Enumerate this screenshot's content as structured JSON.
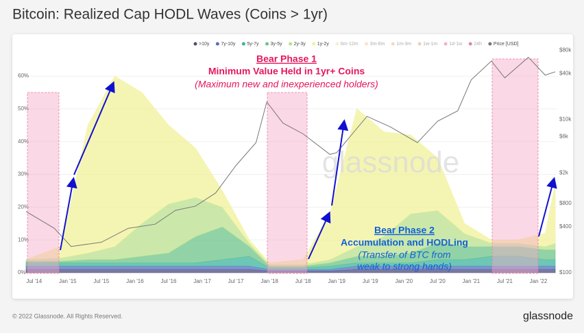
{
  "chart_data": {
    "type": "stacked-area",
    "title": "Bitcoin: Realized Cap HODL Waves (Coins > 1yr)",
    "watermark": "glassnode",
    "footer": "© 2022 Glassnode. All Rights Reserved.",
    "brand": "glassnode",
    "annotations": {
      "phase1_title": "Bear Phase 1",
      "phase1_line1": "Minimum Value Held in 1yr+ Coins",
      "phase1_line2": "(Maximum new and inexperienced holders)",
      "phase2_title": "Bear Phase 2",
      "phase2_line1": "Accumulation and HODLing",
      "phase2_line2": "(Transfer of BTC from",
      "phase2_line3": "weak to strong hands)"
    },
    "x": [
      2014.38,
      2014.9,
      2015.3,
      2015.7,
      2016.1,
      2016.5,
      2016.9,
      2017.3,
      2017.7,
      2018.0,
      2018.5,
      2018.9,
      2019.3,
      2019.7,
      2020.1,
      2020.5,
      2020.9,
      2021.3,
      2021.7,
      2022.1,
      2022.25
    ],
    "xlim": [
      2014.38,
      2022.27
    ],
    "xticks": [
      {
        "value": 2014.5,
        "label": "Jul '14"
      },
      {
        "value": 2015.0,
        "label": "Jan '15"
      },
      {
        "value": 2015.5,
        "label": "Jul '15"
      },
      {
        "value": 2016.0,
        "label": "Jan '16"
      },
      {
        "value": 2016.5,
        "label": "Jul '16"
      },
      {
        "value": 2017.0,
        "label": "Jan '17"
      },
      {
        "value": 2017.5,
        "label": "Jul '17"
      },
      {
        "value": 2018.0,
        "label": "Jan '18"
      },
      {
        "value": 2018.5,
        "label": "Jul '18"
      },
      {
        "value": 2019.0,
        "label": "Jan '19"
      },
      {
        "value": 2019.5,
        "label": "Jul '19"
      },
      {
        "value": 2020.0,
        "label": "Jan '20"
      },
      {
        "value": 2020.5,
        "label": "Jul '20"
      },
      {
        "value": 2021.0,
        "label": "Jan '21"
      },
      {
        "value": 2021.5,
        "label": "Jul '21"
      },
      {
        "value": 2022.0,
        "label": "Jan '22"
      }
    ],
    "ylim": [
      0,
      68.6
    ],
    "yticks": [
      {
        "value": 0,
        "label": "0%"
      },
      {
        "value": 10,
        "label": "10%"
      },
      {
        "value": 20,
        "label": "20%"
      },
      {
        "value": 30,
        "label": "30%"
      },
      {
        "value": 40,
        "label": "40%"
      },
      {
        "value": 50,
        "label": "50%"
      },
      {
        "value": 60,
        "label": "60%"
      }
    ],
    "y2lim": [
      100,
      86000
    ],
    "y2log": true,
    "y2ticks": [
      {
        "value": 100,
        "label": "$100"
      },
      {
        "value": 400,
        "label": "$400"
      },
      {
        "value": 800,
        "label": "$800"
      },
      {
        "value": 2000,
        "label": "$2k"
      },
      {
        "value": 6000,
        "label": "$6k"
      },
      {
        "value": 10000,
        "label": "$10k"
      },
      {
        "value": 40000,
        "label": "$40k"
      },
      {
        "value": 80000,
        "label": "$80k"
      }
    ],
    "series": [
      {
        "name": ">10y",
        "color": "#4b4f7c",
        "values": [
          1,
          1,
          1,
          1,
          1,
          1,
          1,
          1,
          1,
          0.5,
          0.5,
          0.5,
          1,
          1,
          1,
          1,
          1,
          1,
          1,
          1,
          1
        ]
      },
      {
        "name": "7y-10y",
        "color": "#5a6cc0",
        "values": [
          1,
          1,
          1,
          1,
          1,
          1,
          1,
          1,
          1,
          0.5,
          0.5,
          0.5,
          1,
          1,
          1,
          1,
          1,
          1,
          1,
          1,
          1
        ]
      },
      {
        "name": "5y-7y",
        "color": "#3cb39d",
        "values": [
          1,
          1,
          1,
          1,
          1,
          1,
          1,
          2,
          3,
          0.5,
          0.5,
          1,
          1,
          1,
          1,
          2,
          2,
          3,
          3,
          2,
          2
        ]
      },
      {
        "name": "3y-5y",
        "color": "#6cc48a",
        "values": [
          0.5,
          0.5,
          1,
          1,
          2,
          3,
          8,
          10,
          3,
          0.5,
          0.5,
          1,
          2,
          2,
          3,
          5,
          4,
          3,
          3,
          3,
          3
        ]
      },
      {
        "name": "2y-3y",
        "color": "#b9e08d",
        "values": [
          0.5,
          1,
          2,
          4,
          10,
          15,
          12,
          6,
          1,
          0.5,
          0.5,
          1,
          3,
          6,
          12,
          10,
          4,
          1,
          1,
          1,
          2
        ]
      },
      {
        "name": "1y-2y",
        "color": "#f1f29a",
        "values": [
          0,
          3.5,
          39,
          52,
          40,
          24,
          15,
          5,
          1,
          0.5,
          1.5,
          14,
          42,
          32,
          24,
          16,
          3,
          1,
          1,
          4,
          18
        ]
      },
      {
        "name": "Price [USD]",
        "color": "#777777",
        "axis": "y2",
        "x": [
          2014.38,
          2014.8,
          2015.05,
          2015.5,
          2015.9,
          2016.3,
          2016.6,
          2016.9,
          2017.2,
          2017.5,
          2017.8,
          2017.96,
          2018.2,
          2018.5,
          2018.9,
          2019.0,
          2019.45,
          2019.8,
          2020.2,
          2020.5,
          2020.8,
          2021.0,
          2021.3,
          2021.5,
          2021.85,
          2022.1,
          2022.25
        ],
        "values": [
          630,
          380,
          220,
          250,
          380,
          430,
          650,
          740,
          1100,
          2500,
          5000,
          17000,
          9000,
          6500,
          3500,
          3700,
          11000,
          8000,
          5000,
          9500,
          13000,
          33000,
          58000,
          35000,
          65000,
          38000,
          42000
        ]
      }
    ],
    "legend_inactive": [
      {
        "name": "6m-12m",
        "color": "#f6e09a"
      },
      {
        "name": "3m-6m",
        "color": "#f3c894"
      },
      {
        "name": "1m-3m",
        "color": "#f0ad84"
      },
      {
        "name": "1w-1m",
        "color": "#ef9485"
      },
      {
        "name": "1d-1w",
        "color": "#e5687a"
      },
      {
        "name": "24h",
        "color": "#b0174f"
      }
    ]
  }
}
